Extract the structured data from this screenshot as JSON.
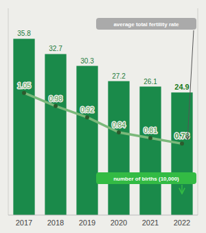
{
  "chart_data": {
    "type": "bar",
    "categories": [
      "2017",
      "2018",
      "2019",
      "2020",
      "2021",
      "2022"
    ],
    "series": [
      {
        "name": "number of births (10,000)",
        "type": "bar",
        "color": "#1a8a4a",
        "values": [
          35.8,
          32.7,
          30.3,
          27.2,
          26.1,
          24.9
        ]
      },
      {
        "name": "average total fertility rate",
        "type": "line",
        "axis": "y2",
        "color": "#7ab87a",
        "marker": "circle",
        "values": [
          1.05,
          0.98,
          0.92,
          0.84,
          0.81,
          0.78
        ]
      }
    ],
    "ylim": [
      0,
      42
    ],
    "y2lim": [
      0.4,
      1.5
    ],
    "data_labels": true,
    "tick_labels": "x",
    "grid": false
  }
}
